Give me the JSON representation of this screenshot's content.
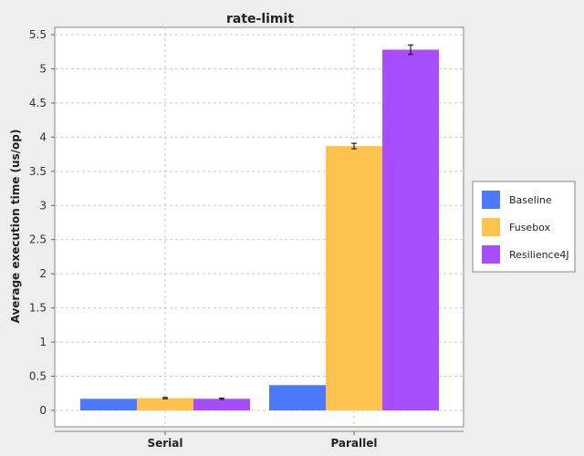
{
  "chart_data": {
    "type": "bar",
    "title": "rate-limit",
    "xlabel": "",
    "ylabel": "Average execution time (us/op)",
    "categories": [
      "Serial",
      "Parallel"
    ],
    "series": [
      {
        "name": "Baseline",
        "color": "#4d79ff",
        "values": [
          0.17,
          0.37
        ],
        "errors": [
          null,
          null
        ]
      },
      {
        "name": "Fusebox",
        "color": "#ffc34d",
        "values": [
          0.18,
          3.87
        ],
        "errors": [
          0.01,
          0.04
        ]
      },
      {
        "name": "Resilience4J",
        "color": "#a64dff",
        "values": [
          0.17,
          5.28
        ],
        "errors": [
          0.01,
          0.07
        ]
      }
    ],
    "ylim": [
      -0.25,
      5.6
    ],
    "yticks": [
      0,
      0.5,
      1,
      1.5,
      2,
      2.5,
      3,
      3.5,
      4,
      4.5,
      5,
      5.5
    ],
    "ytick_labels": [
      "0",
      "0.5",
      "1",
      "1.5",
      "2",
      "2.5",
      "3",
      "3.5",
      "4",
      "4.5",
      "5",
      "5.5"
    ],
    "grid": true,
    "legend_position": "right"
  }
}
